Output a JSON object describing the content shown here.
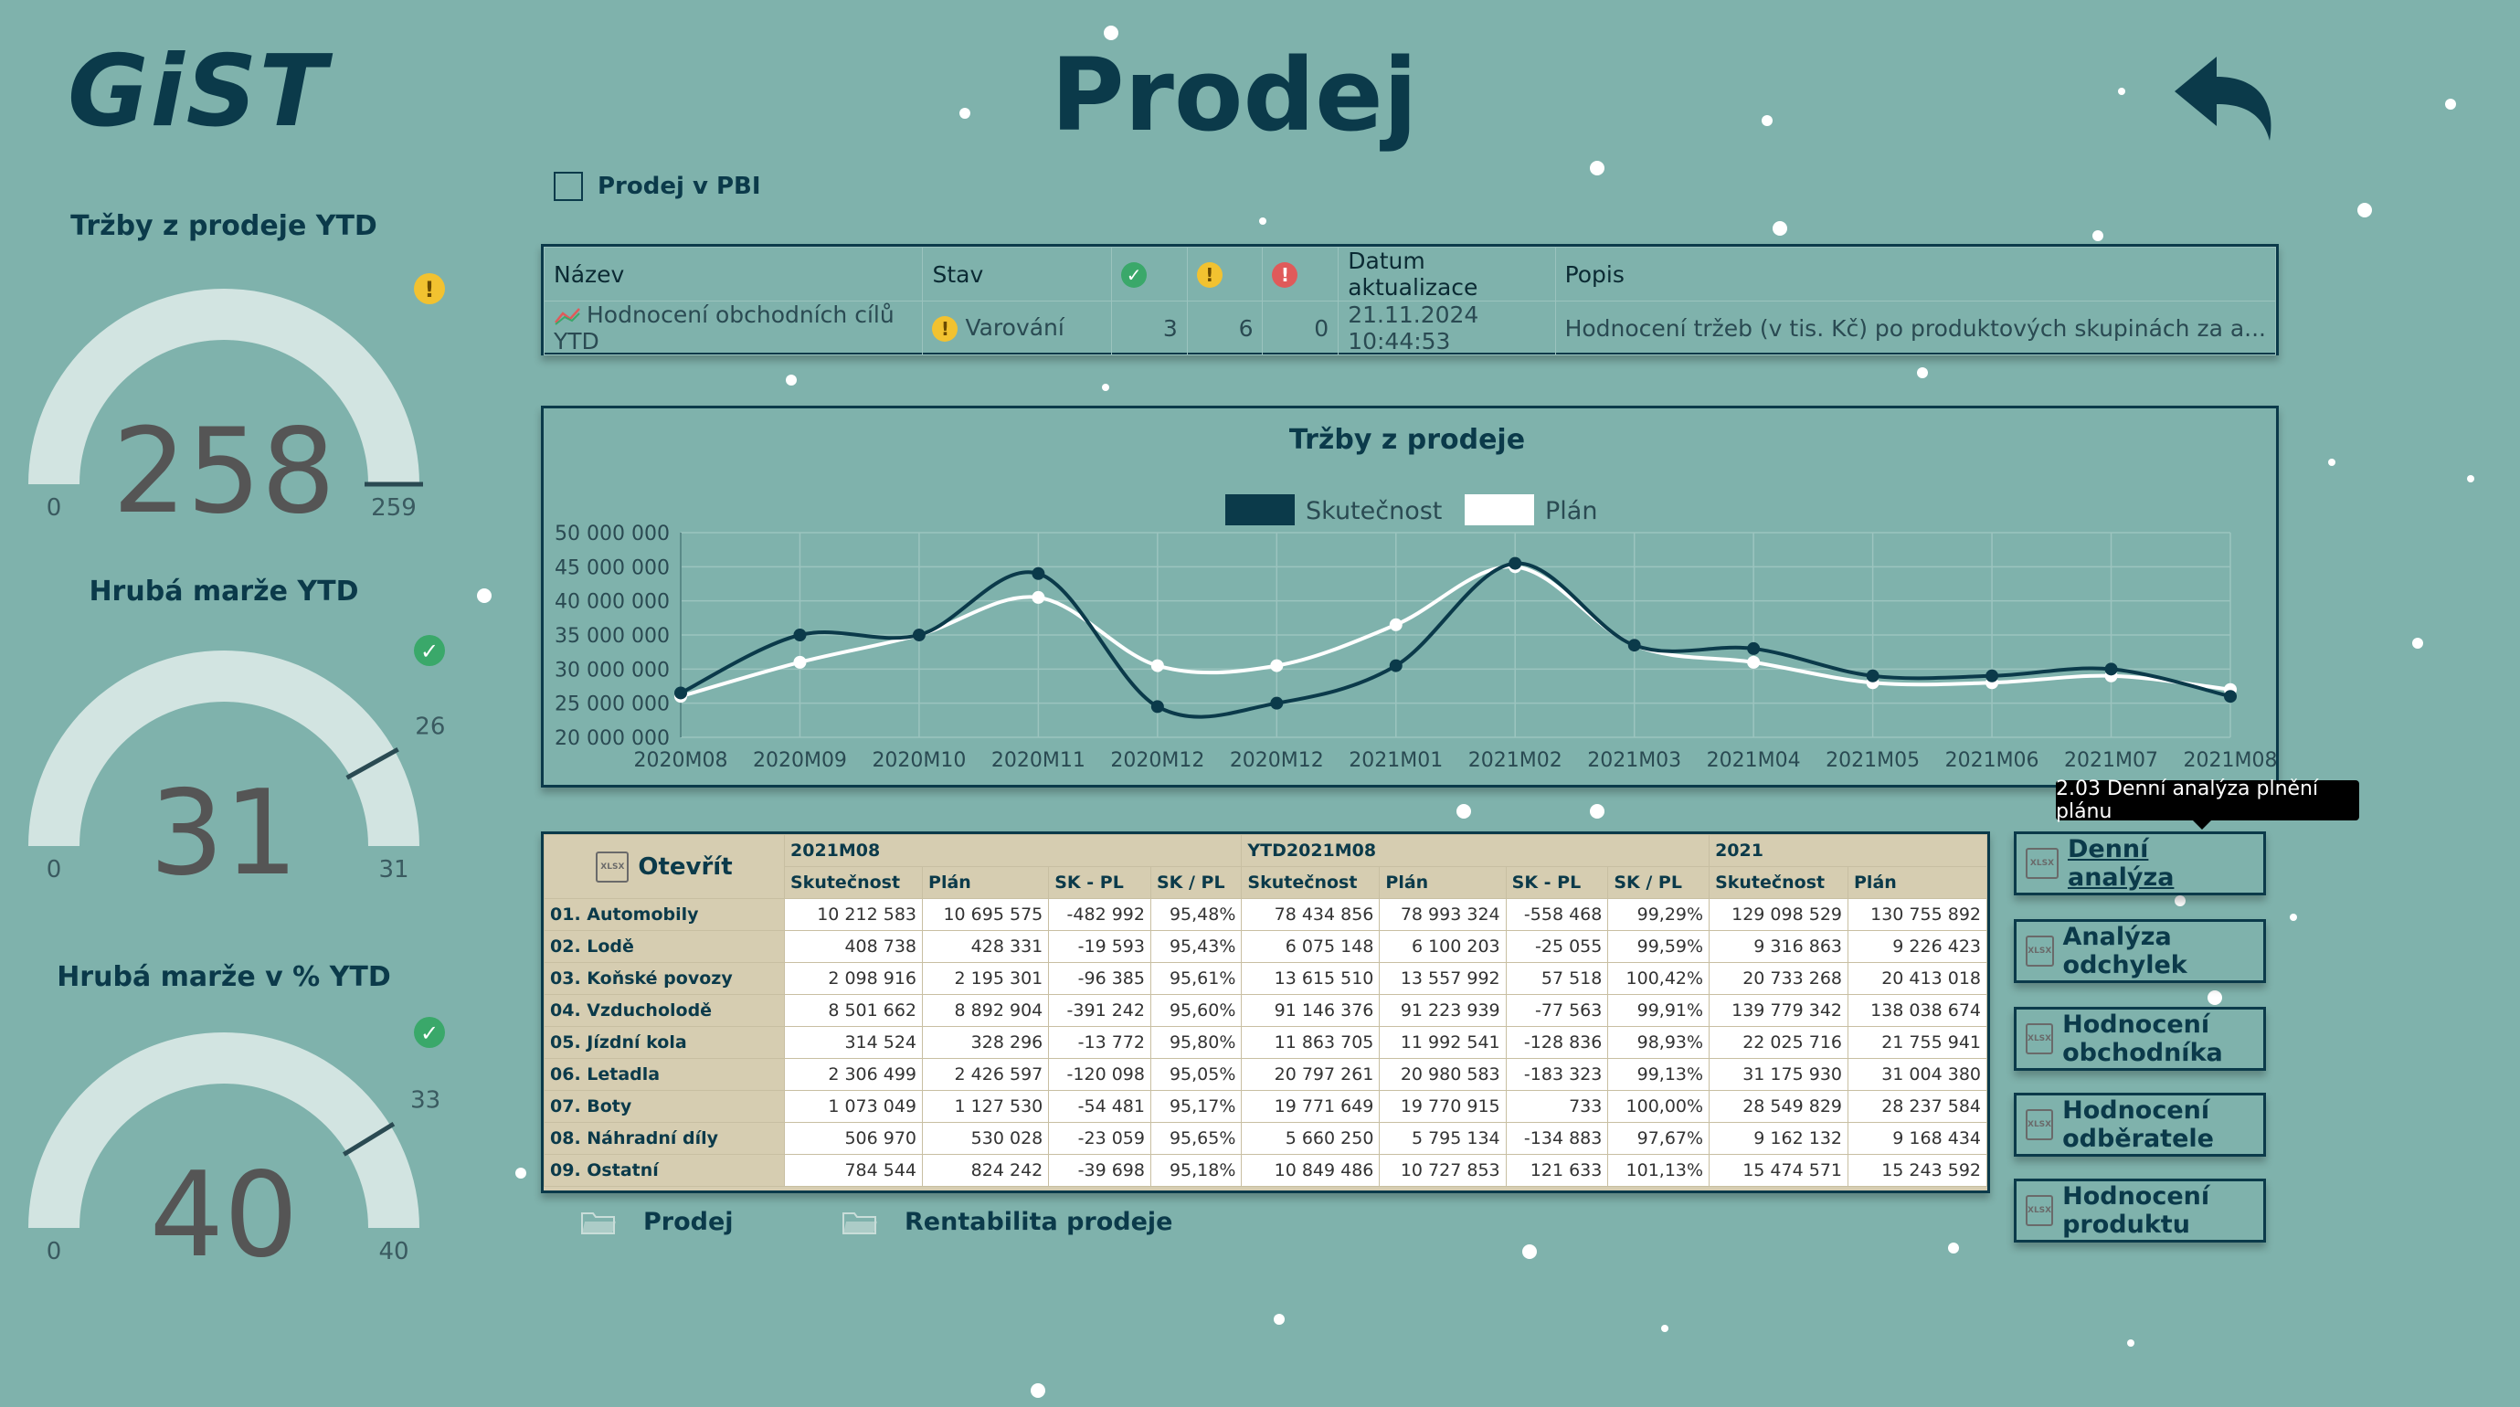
{
  "header": {
    "logo": "GiST",
    "title": "Prodej"
  },
  "pbi_checkbox": {
    "label": "Prodej v PBI",
    "checked": false
  },
  "status_table": {
    "headers": {
      "name": "Název",
      "state": "Stav",
      "updated": "Datum aktualizace",
      "desc": "Popis"
    },
    "row": {
      "name": "Hodnocení obchodních cílů YTD",
      "state": "Varování",
      "ok": "3",
      "warn": "6",
      "err": "0",
      "updated": "21.11.2024 10:44:53",
      "desc": "Hodnocení tržeb (v tis. Kč) po produktových skupinách za a..."
    }
  },
  "gauges": [
    {
      "title": "Tržby z prodeje YTD",
      "value": 258,
      "display": "258",
      "min": "0",
      "max": "259",
      "target": 259,
      "status": "warn"
    },
    {
      "title": "Hrubá marže YTD",
      "value": 31,
      "display": "31",
      "min": "0",
      "max": "31",
      "target_label": "26",
      "target": 26,
      "status": "ok"
    },
    {
      "title": "Hrubá marže v % YTD",
      "value": 40,
      "display": "40",
      "min": "0",
      "max": "40",
      "target_label": "33",
      "target": 33,
      "status": "ok"
    }
  ],
  "colors": {
    "background": "#7fb2ac",
    "primary": "#0b3a4a",
    "gauge_bg": "#d2e4e1",
    "warn": "#f2c230",
    "ok": "#3aa86a",
    "err": "#e05a5a"
  },
  "chart_data": {
    "type": "line",
    "title": "Tržby z prodeje",
    "categories": [
      "2020M08",
      "2020M09",
      "2020M10",
      "2020M11",
      "2020M12",
      "2020M12",
      "2021M01",
      "2021M02",
      "2021M03",
      "2021M04",
      "2021M05",
      "2021M06",
      "2021M07",
      "2021M08"
    ],
    "series": [
      {
        "name": "Skutečnost",
        "color": "#0b3a4a",
        "values": [
          26500000,
          35000000,
          35000000,
          44000000,
          24500000,
          25000000,
          30500000,
          45500000,
          33500000,
          33000000,
          29000000,
          29000000,
          30000000,
          26000000
        ]
      },
      {
        "name": "Plán",
        "color": "#ffffff",
        "values": [
          26000000,
          31000000,
          35000000,
          40500000,
          30500000,
          30500000,
          36500000,
          45000000,
          33500000,
          31000000,
          28000000,
          28000000,
          29000000,
          27000000
        ]
      }
    ],
    "ylim": [
      20000000,
      50000000
    ],
    "yticks": [
      "20 000 000",
      "25 000 000",
      "30 000 000",
      "35 000 000",
      "40 000 000",
      "45 000 000",
      "50 000 000"
    ],
    "legend": "top-center",
    "grid": true
  },
  "data_table": {
    "open_label": "Otevřít",
    "groups": [
      "2021M08",
      "YTD2021M08",
      "2021"
    ],
    "columns": [
      "Skutečnost",
      "Plán",
      "SK - PL",
      "SK / PL",
      "Skutečnost",
      "Plán",
      "SK - PL",
      "SK / PL",
      "Skutečnost",
      "Plán"
    ],
    "rows": [
      {
        "label": "01. Automobily",
        "cells": [
          "10 212 583",
          "10 695 575",
          "-482 992",
          "95,48%",
          "78 434 856",
          "78 993 324",
          "-558 468",
          "99,29%",
          "129 098 529",
          "130 755 892"
        ]
      },
      {
        "label": "02. Lodě",
        "cells": [
          "408 738",
          "428 331",
          "-19 593",
          "95,43%",
          "6 075 148",
          "6 100 203",
          "-25 055",
          "99,59%",
          "9 316 863",
          "9 226 423"
        ]
      },
      {
        "label": "03. Koňské povozy",
        "cells": [
          "2 098 916",
          "2 195 301",
          "-96 385",
          "95,61%",
          "13 615 510",
          "13 557 992",
          "57 518",
          "100,42%",
          "20 733 268",
          "20 413 018"
        ]
      },
      {
        "label": "04. Vzducholodě",
        "cells": [
          "8 501 662",
          "8 892 904",
          "-391 242",
          "95,60%",
          "91 146 376",
          "91 223 939",
          "-77 563",
          "99,91%",
          "139 779 342",
          "138 038 674"
        ]
      },
      {
        "label": "05. Jízdní kola",
        "cells": [
          "314 524",
          "328 296",
          "-13 772",
          "95,80%",
          "11 863 705",
          "11 992 541",
          "-128 836",
          "98,93%",
          "22 025 716",
          "21 755 941"
        ]
      },
      {
        "label": "06. Letadla",
        "cells": [
          "2 306 499",
          "2 426 597",
          "-120 098",
          "95,05%",
          "20 797 261",
          "20 980 583",
          "-183 323",
          "99,13%",
          "31 175 930",
          "31 004 380"
        ]
      },
      {
        "label": "07. Boty",
        "cells": [
          "1 073 049",
          "1 127 530",
          "-54 481",
          "95,17%",
          "19 771 649",
          "19 770 915",
          "733",
          "100,00%",
          "28 549 829",
          "28 237 584"
        ]
      },
      {
        "label": "08. Náhradní díly",
        "cells": [
          "506 970",
          "530 028",
          "-23 059",
          "95,65%",
          "5 660 250",
          "5 795 134",
          "-134 883",
          "97,67%",
          "9 162 132",
          "9 168 434"
        ]
      },
      {
        "label": "09. Ostatní",
        "cells": [
          "784 544",
          "824 242",
          "-39 698",
          "95,18%",
          "10 849 486",
          "10 727 853",
          "121 633",
          "101,13%",
          "15 474 571",
          "15 243 592"
        ]
      }
    ]
  },
  "side_buttons": [
    "Denní analýza",
    "Analýza odchylek",
    "Hodnocení obchodníka",
    "Hodnocení odběratele",
    "Hodnocení produktu"
  ],
  "tooltip": "2.03 Denní analýza plnění plánu",
  "folders": [
    "Prodej",
    "Rentabilita prodeje"
  ],
  "icons": {
    "back": "back-arrow-icon",
    "xlsx": "xlsx-icon",
    "folder": "folder-icon"
  }
}
